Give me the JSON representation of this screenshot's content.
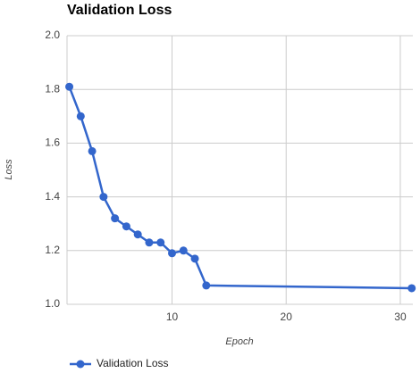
{
  "chart_data": {
    "type": "line",
    "title": "Validation Loss",
    "x_label": "Epoch",
    "y_label": "Loss",
    "x": [
      1,
      2,
      3,
      4,
      5,
      6,
      7,
      8,
      9,
      10,
      11,
      12,
      13,
      31
    ],
    "series": [
      {
        "name": "Validation Loss",
        "color": "#3366cc",
        "values": [
          1.81,
          1.7,
          1.57,
          1.4,
          1.32,
          1.29,
          1.26,
          1.23,
          1.23,
          1.19,
          1.2,
          1.17,
          1.07,
          1.06
        ]
      }
    ],
    "xlim": [
      0.8,
      31.1
    ],
    "xticks": [
      10,
      20,
      30
    ],
    "ylim": [
      1.0,
      2.0
    ],
    "yticks": [
      {
        "value": 1.0,
        "label": "1.0"
      },
      {
        "value": 1.2,
        "label": "1.2"
      },
      {
        "value": 1.4,
        "label": "1.4"
      },
      {
        "value": 1.6,
        "label": "1.6"
      },
      {
        "value": 1.8,
        "label": "1.8"
      },
      {
        "value": 2.0,
        "label": "2.0"
      }
    ],
    "grid": true,
    "legend": "bottom"
  }
}
